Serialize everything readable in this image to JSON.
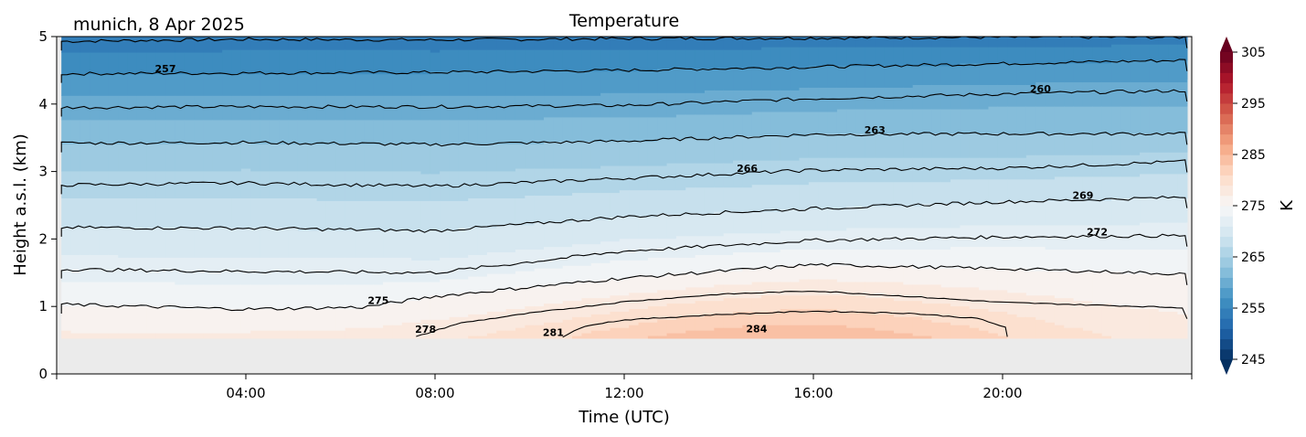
{
  "chart_data": {
    "type": "contourf",
    "title": "Temperature",
    "subtitle": "munich, 8 Apr 2025",
    "xlabel": "Time (UTC)",
    "ylabel": "Height a.s.l. (km)",
    "xlim_hours": [
      0,
      24
    ],
    "ylim": [
      0,
      5
    ],
    "x_ticks": [
      {
        "hour": 0,
        "label": ""
      },
      {
        "hour": 4,
        "label": "04:00"
      },
      {
        "hour": 8,
        "label": "08:00"
      },
      {
        "hour": 12,
        "label": "12:00"
      },
      {
        "hour": 16,
        "label": "16:00"
      },
      {
        "hour": 20,
        "label": "20:00"
      },
      {
        "hour": 24,
        "label": ""
      }
    ],
    "y_ticks": [
      {
        "value": 0,
        "label": "0"
      },
      {
        "value": 1,
        "label": "1"
      },
      {
        "value": 2,
        "label": "2"
      },
      {
        "value": 3,
        "label": "3"
      },
      {
        "value": 4,
        "label": "4"
      },
      {
        "value": 5,
        "label": "5"
      }
    ],
    "data_time_range_hours": [
      0.1,
      23.9
    ],
    "masked_below_km": 0.53,
    "colorbar": {
      "label": "K",
      "range": [
        245,
        305
      ],
      "step": 2,
      "ticks": [
        {
          "value": 245,
          "label": "245"
        },
        {
          "value": 255,
          "label": "255"
        },
        {
          "value": 265,
          "label": "265"
        },
        {
          "value": 275,
          "label": "275"
        },
        {
          "value": 285,
          "label": "285"
        },
        {
          "value": 295,
          "label": "295"
        },
        {
          "value": 305,
          "label": "305"
        }
      ],
      "colormap": "RdBu_r",
      "extend": "both"
    },
    "contours": [
      {
        "level": 254,
        "label": "",
        "hours": [
          0.1,
          4,
          8,
          12,
          16,
          20,
          23.9
        ],
        "heights_km": [
          4.93,
          4.96,
          4.95,
          4.97,
          4.98,
          4.99,
          4.99
        ]
      },
      {
        "level": 257,
        "label": "257",
        "label_hour": 2.3,
        "hours": [
          0.1,
          4,
          8,
          12,
          16,
          20,
          23.9
        ],
        "heights_km": [
          4.45,
          4.46,
          4.47,
          4.5,
          4.55,
          4.6,
          4.65
        ]
      },
      {
        "level": 260,
        "label": "260",
        "label_hour": 20.8,
        "hours": [
          0.1,
          4,
          8,
          12,
          16,
          20,
          23.9
        ],
        "heights_km": [
          3.95,
          3.96,
          3.96,
          3.98,
          4.08,
          4.15,
          4.2
        ]
      },
      {
        "level": 263,
        "label": "263",
        "label_hour": 17.3,
        "hours": [
          0.1,
          4,
          8,
          12,
          16,
          20,
          23.9
        ],
        "heights_km": [
          3.42,
          3.43,
          3.4,
          3.45,
          3.55,
          3.56,
          3.56
        ]
      },
      {
        "level": 266,
        "label": "266",
        "label_hour": 14.6,
        "hours": [
          0.1,
          4,
          8,
          12,
          16,
          20,
          23.9
        ],
        "heights_km": [
          2.8,
          2.83,
          2.78,
          2.9,
          3.02,
          3.05,
          3.15
        ]
      },
      {
        "level": 269,
        "label": "269",
        "label_hour": 21.7,
        "hours": [
          0.1,
          4,
          8,
          12,
          16,
          20,
          23.9
        ],
        "heights_km": [
          2.17,
          2.16,
          2.12,
          2.33,
          2.45,
          2.55,
          2.62
        ]
      },
      {
        "level": 272,
        "label": "272",
        "label_hour": 22.0,
        "hours": [
          0.1,
          4,
          8,
          12,
          16,
          20,
          23.9
        ],
        "heights_km": [
          1.55,
          1.52,
          1.5,
          1.82,
          1.98,
          2.03,
          2.05
        ]
      },
      {
        "level": 275,
        "label": "275",
        "label_hour": 6.8,
        "hours": [
          0.1,
          4,
          6.5,
          8,
          12,
          16,
          20,
          23.9
        ],
        "heights_km": [
          1.03,
          0.96,
          0.99,
          1.15,
          1.42,
          1.62,
          1.56,
          1.48
        ]
      },
      {
        "level": 278,
        "label": "278",
        "label_hour": 7.8,
        "hours": [
          7.6,
          8.5,
          10,
          12,
          14,
          16,
          18,
          20,
          23.9
        ],
        "heights_km": [
          0.55,
          0.75,
          0.9,
          1.07,
          1.18,
          1.23,
          1.15,
          1.06,
          0.98
        ]
      },
      {
        "level": 281,
        "label": "281",
        "label_hour": 10.5,
        "hours": [
          10.7,
          11.2,
          12,
          14,
          16,
          18,
          19.5,
          20.1,
          20.1
        ],
        "heights_km": [
          0.55,
          0.72,
          0.8,
          0.88,
          0.93,
          0.9,
          0.82,
          0.68,
          0.55
        ]
      },
      {
        "level": 284,
        "label": "284",
        "label_hour": 14.8,
        "hours": [],
        "heights_km": []
      }
    ],
    "field_description_levels": {
      "surface_max_K": 285,
      "top_min_K": 253
    }
  }
}
